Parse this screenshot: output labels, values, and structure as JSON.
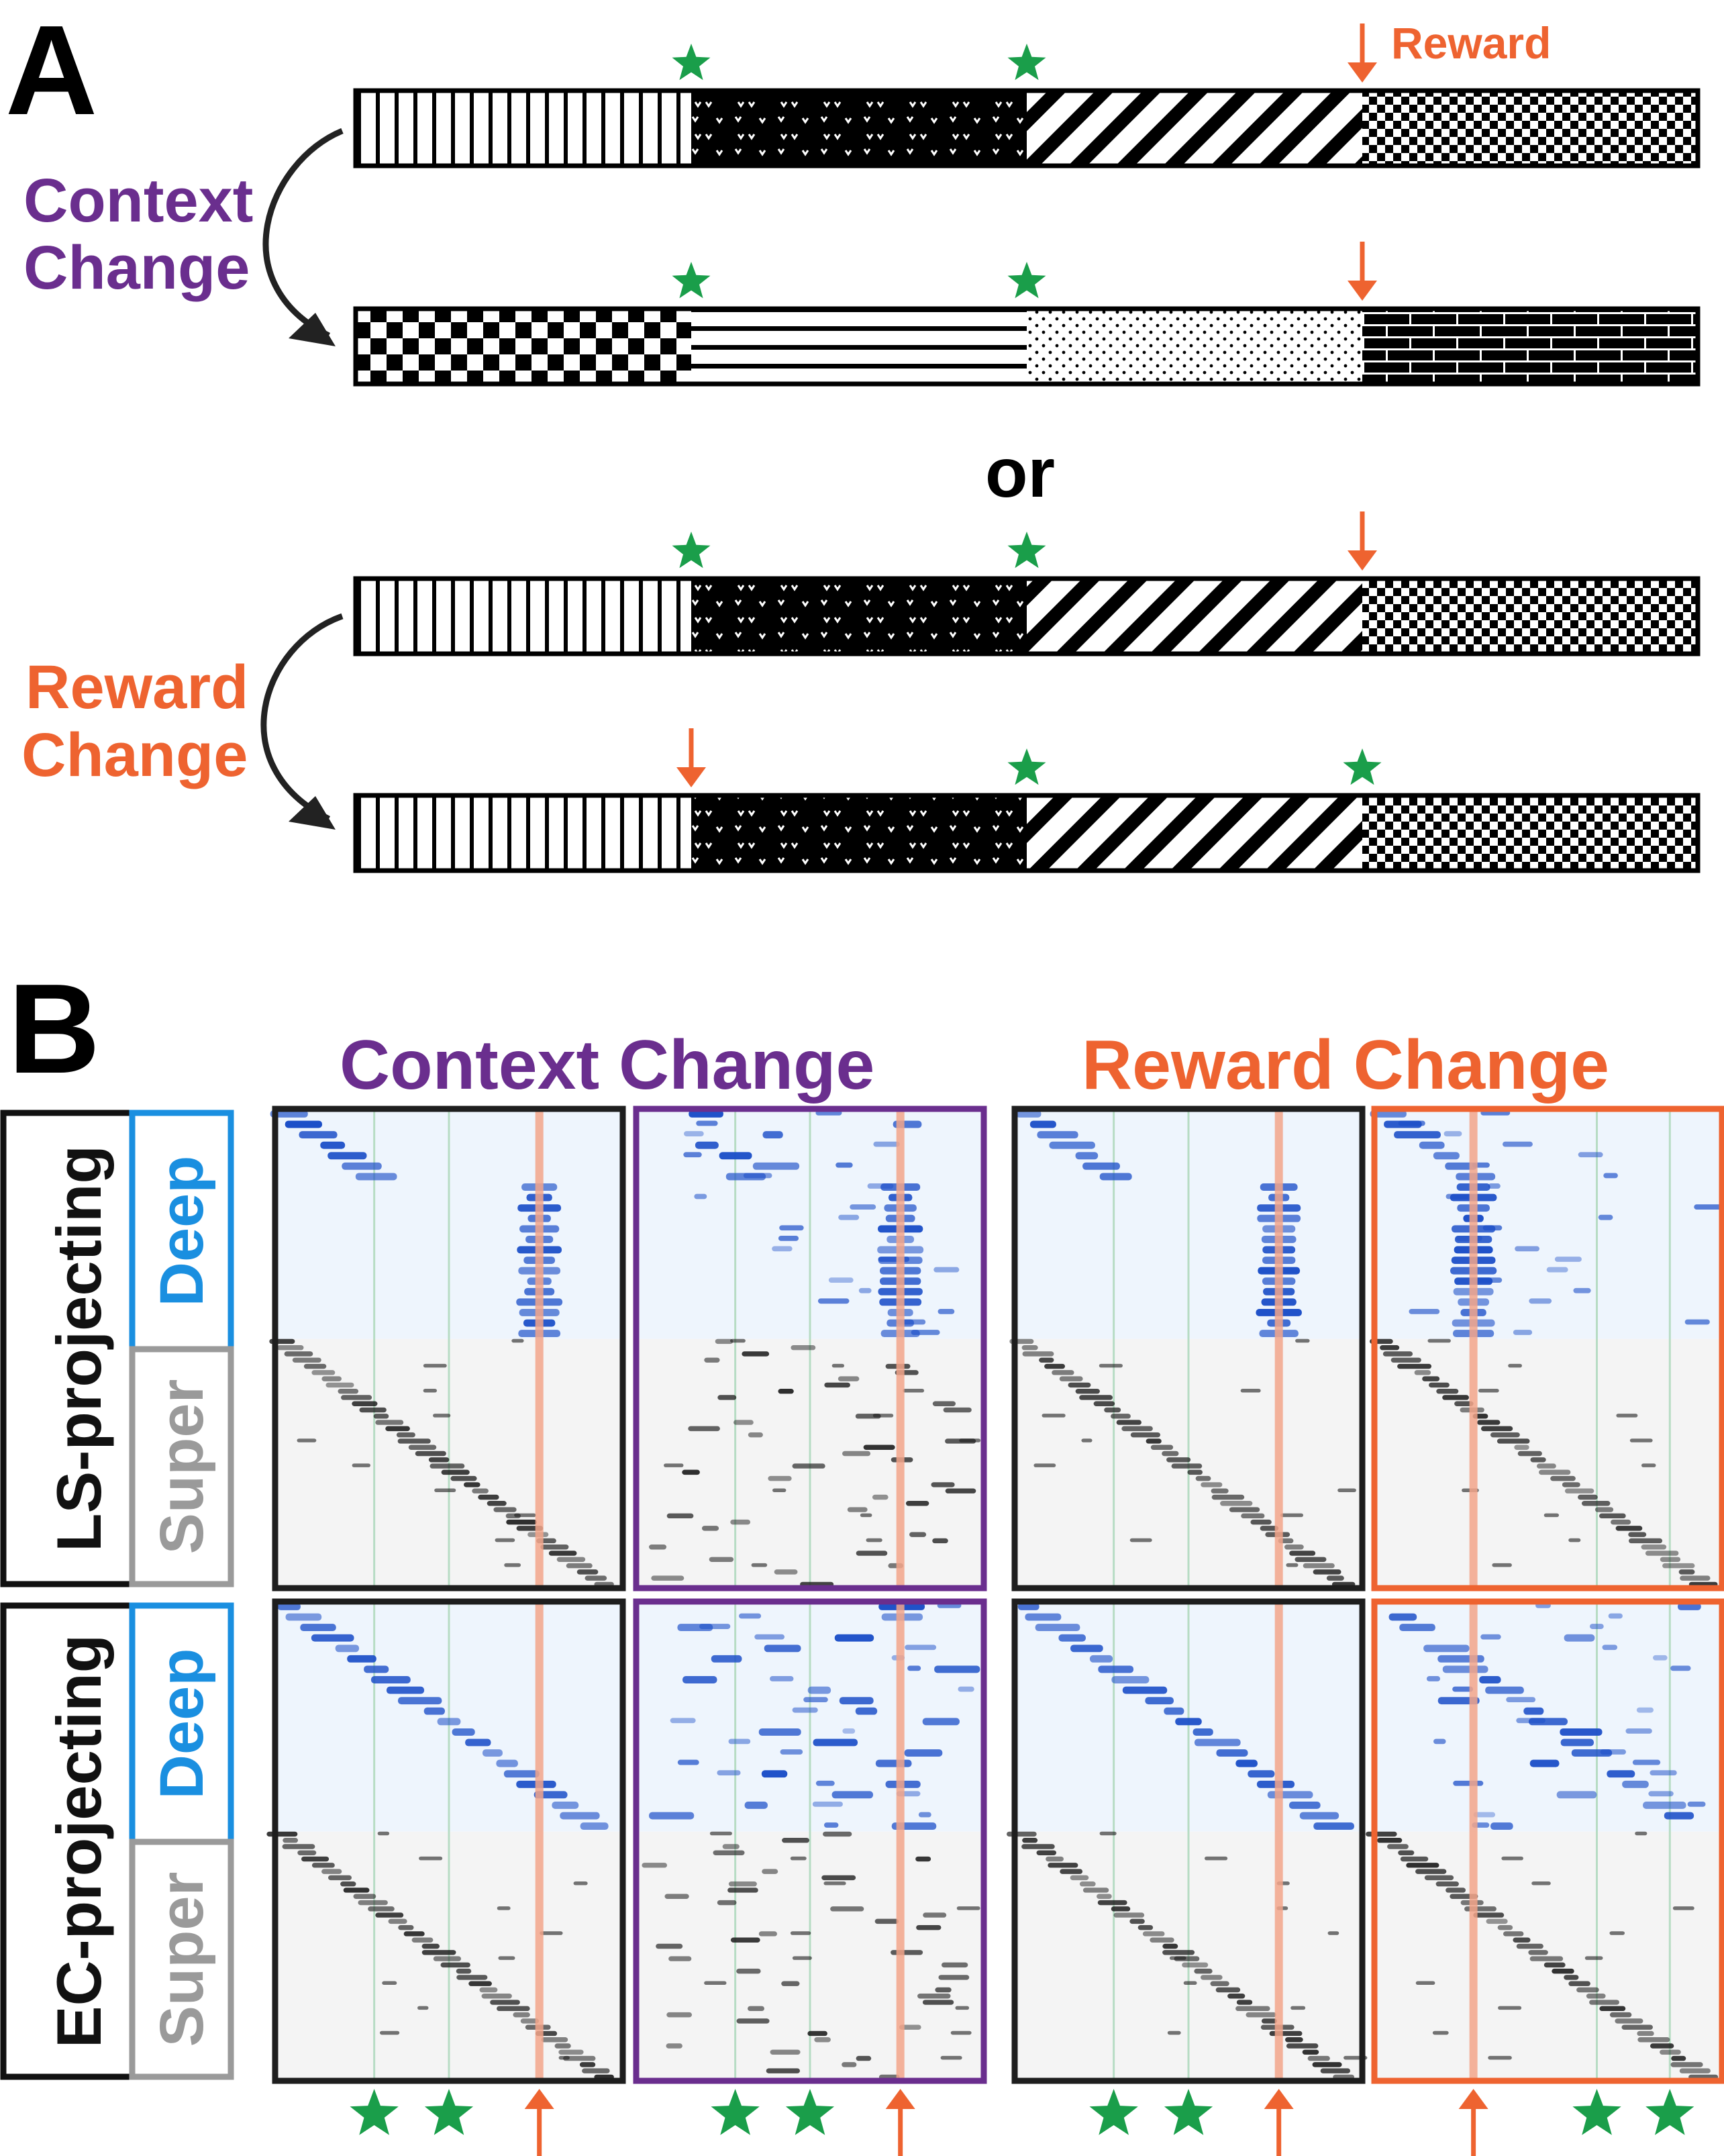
{
  "panel_a": {
    "letter": "A",
    "reward_label": "Reward",
    "context_change_line1": "Context",
    "context_change_line2": "Change",
    "or_label": "or",
    "reward_change_line1": "Reward",
    "reward_change_line2": "Change",
    "tracks": [
      {
        "segments": [
          "vertical-lines",
          "dark-checks",
          "diagonal-stripes",
          "fine-checker"
        ],
        "stars_at": [
          1,
          2
        ],
        "reward_at": 3
      },
      {
        "segments": [
          "checkerboard",
          "horizontal-lines",
          "dots",
          "bricks"
        ],
        "stars_at": [
          1,
          2
        ],
        "reward_at": 3
      },
      {
        "segments": [
          "vertical-lines",
          "dark-checks",
          "diagonal-stripes",
          "fine-checker"
        ],
        "stars_at": [
          1,
          2
        ],
        "reward_at": 3
      },
      {
        "segments": [
          "vertical-lines",
          "dark-checks",
          "diagonal-stripes",
          "fine-checker"
        ],
        "stars_at": [
          2,
          3
        ],
        "reward_at": 1
      }
    ]
  },
  "panel_b": {
    "letter": "B",
    "context_change_title": "Context Change",
    "reward_change_title": "Reward Change",
    "row_labels": [
      "LS-projecting",
      "EC-projecting"
    ],
    "sub_labels": {
      "deep": "Deep",
      "super": "Super"
    },
    "bottom_markers": [
      [
        "star",
        "star",
        "arrow"
      ],
      [
        "star",
        "star",
        "arrow"
      ],
      [
        "star",
        "star",
        "arrow"
      ],
      [
        "arrow",
        "star",
        "star"
      ]
    ]
  },
  "colors": {
    "purple": "#6a2e8e",
    "orange": "#ee6330",
    "green": "#1a9e4a",
    "blue": "#1a8fe0",
    "gray": "#9a9a9a",
    "deep_bg": "#eef5fd",
    "super_bg": "#f4f4f4",
    "blue_mark": "#1c4fc8",
    "black_mark": "#1a1a1a",
    "reward_line": "#f2a48a",
    "cue_line": "#b7dcc4"
  }
}
